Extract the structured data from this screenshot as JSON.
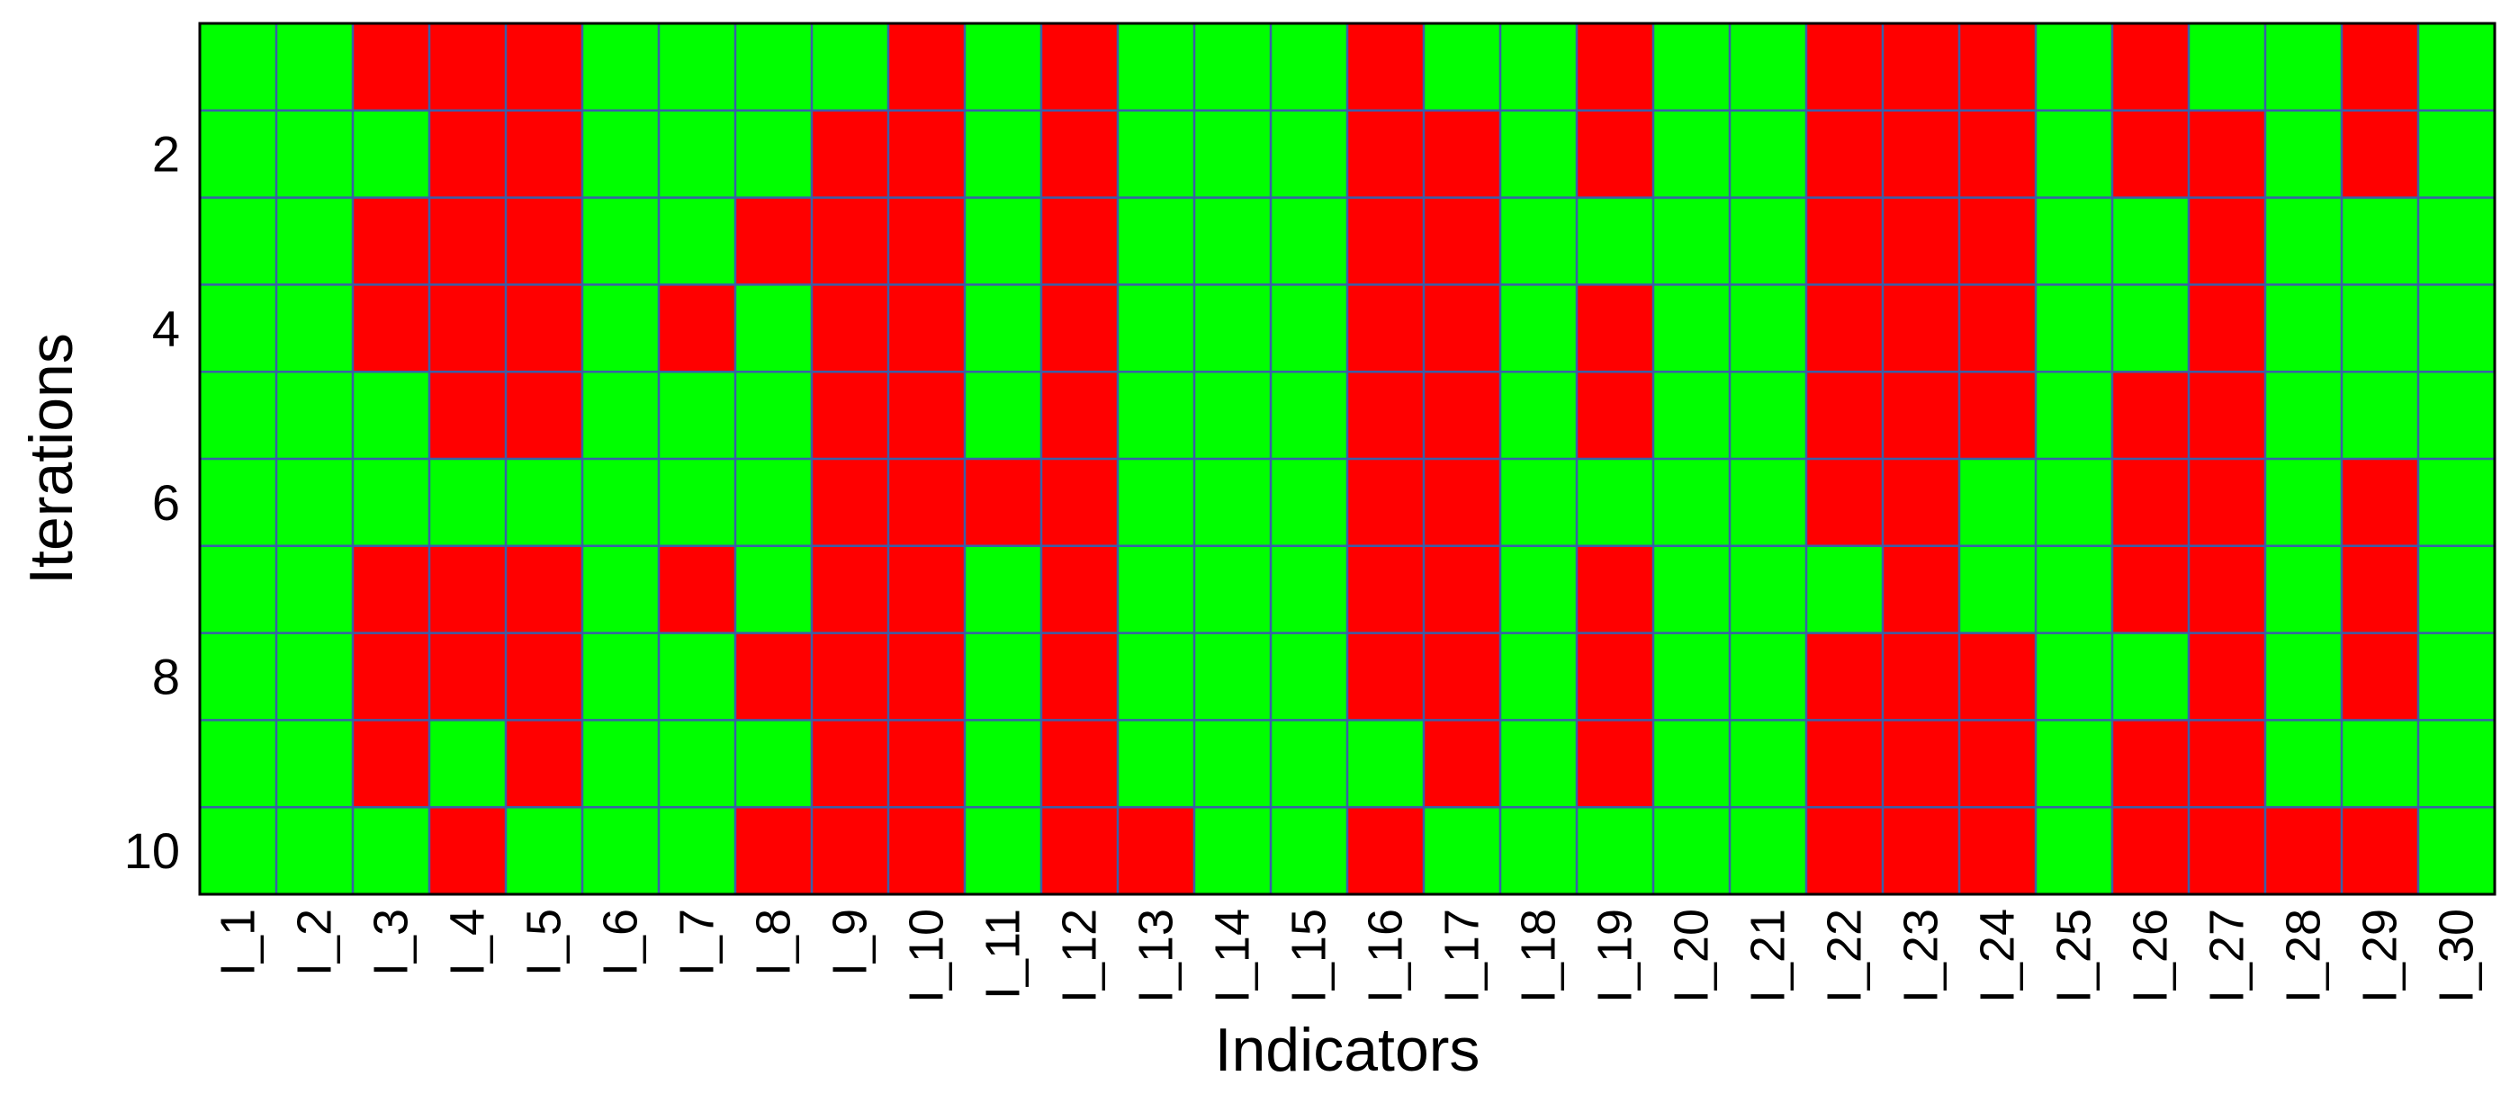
{
  "chart_data": {
    "type": "heatmap",
    "xlabel": "Indicators",
    "ylabel": "Iterations",
    "x_categories": [
      "I_1",
      "I_2",
      "I_3",
      "I_4",
      "I_5",
      "I_6",
      "I_7",
      "I_8",
      "I_9",
      "I_10",
      "I_11",
      "I_12",
      "I_13",
      "I_14",
      "I_15",
      "I_16",
      "I_17",
      "I_18",
      "I_19",
      "I_20",
      "I_21",
      "I_22",
      "I_23",
      "I_24",
      "I_25",
      "I_26",
      "I_27",
      "I_28",
      "I_29",
      "I_30"
    ],
    "y_categories": [
      1,
      2,
      3,
      4,
      5,
      6,
      7,
      8,
      9,
      10
    ],
    "y_tick_labels": [
      "2",
      "4",
      "6",
      "8",
      "10"
    ],
    "y_tick_values": [
      2,
      4,
      6,
      8,
      10
    ],
    "value_colors": {
      "0": "#00ff00",
      "1": "#ff0000"
    },
    "grid_color": "#3a5fa8",
    "values": [
      [
        0,
        0,
        1,
        1,
        1,
        0,
        0,
        0,
        0,
        1,
        0,
        1,
        0,
        0,
        0,
        1,
        0,
        0,
        1,
        0,
        0,
        1,
        1,
        1,
        0,
        1,
        0,
        0,
        1,
        0
      ],
      [
        0,
        0,
        0,
        1,
        1,
        0,
        0,
        0,
        1,
        1,
        0,
        1,
        0,
        0,
        0,
        1,
        1,
        0,
        1,
        0,
        0,
        1,
        1,
        1,
        0,
        1,
        1,
        0,
        1,
        0
      ],
      [
        0,
        0,
        1,
        1,
        1,
        0,
        0,
        1,
        1,
        1,
        0,
        1,
        0,
        0,
        0,
        1,
        1,
        0,
        0,
        0,
        0,
        1,
        1,
        1,
        0,
        0,
        1,
        0,
        0,
        0
      ],
      [
        0,
        0,
        1,
        1,
        1,
        0,
        1,
        0,
        1,
        1,
        0,
        1,
        0,
        0,
        0,
        1,
        1,
        0,
        1,
        0,
        0,
        1,
        1,
        1,
        0,
        0,
        1,
        0,
        0,
        0
      ],
      [
        0,
        0,
        0,
        1,
        1,
        0,
        0,
        0,
        1,
        1,
        0,
        1,
        0,
        0,
        0,
        1,
        1,
        0,
        1,
        0,
        0,
        1,
        1,
        1,
        0,
        1,
        1,
        0,
        0,
        0
      ],
      [
        0,
        0,
        0,
        0,
        0,
        0,
        0,
        0,
        1,
        1,
        1,
        1,
        0,
        0,
        0,
        1,
        1,
        0,
        0,
        0,
        0,
        1,
        1,
        0,
        0,
        1,
        1,
        0,
        1,
        0
      ],
      [
        0,
        0,
        1,
        1,
        1,
        0,
        1,
        0,
        1,
        1,
        0,
        1,
        0,
        0,
        0,
        1,
        1,
        0,
        1,
        0,
        0,
        0,
        1,
        0,
        0,
        1,
        1,
        0,
        1,
        0
      ],
      [
        0,
        0,
        1,
        1,
        1,
        0,
        0,
        1,
        1,
        1,
        0,
        1,
        0,
        0,
        0,
        1,
        1,
        0,
        1,
        0,
        0,
        1,
        1,
        1,
        0,
        0,
        1,
        0,
        1,
        0
      ],
      [
        0,
        0,
        1,
        0,
        1,
        0,
        0,
        0,
        1,
        1,
        0,
        1,
        0,
        0,
        0,
        0,
        1,
        0,
        1,
        0,
        0,
        1,
        1,
        1,
        0,
        1,
        1,
        0,
        0,
        0
      ],
      [
        0,
        0,
        0,
        1,
        0,
        0,
        0,
        1,
        1,
        1,
        0,
        1,
        1,
        0,
        0,
        1,
        0,
        0,
        0,
        0,
        0,
        1,
        1,
        1,
        0,
        1,
        1,
        1,
        1,
        0
      ]
    ]
  }
}
